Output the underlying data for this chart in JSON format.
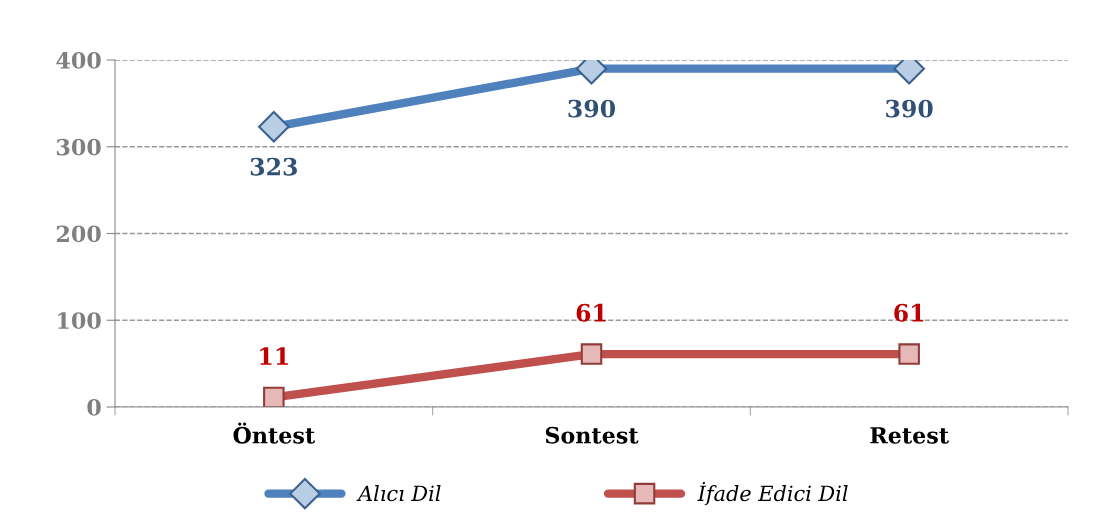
{
  "chart_data": {
    "type": "line",
    "categories": [
      "Öntest",
      "Sontest",
      "Retest"
    ],
    "series": [
      {
        "name": "Alıcı Dil",
        "color": "#4f81bd",
        "marker": "diamond",
        "values": [
          323,
          390,
          390
        ]
      },
      {
        "name": "İfade Edici Dil",
        "color": "#c0504d",
        "marker": "square",
        "values": [
          11,
          61,
          61
        ]
      }
    ],
    "ylim": [
      0,
      400
    ],
    "yticks": [
      0,
      100,
      200,
      300,
      400
    ],
    "grid": "y",
    "legend": "bottom",
    "data_labels": true,
    "line_style": "solid"
  }
}
